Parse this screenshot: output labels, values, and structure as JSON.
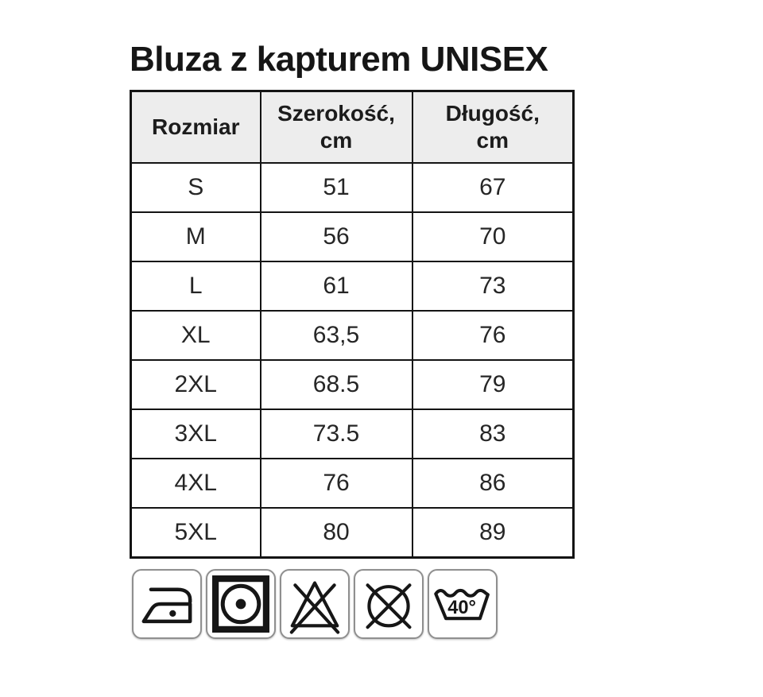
{
  "page": {
    "title": "Bluza z kapturem UNISEX"
  },
  "size_table": {
    "columns": [
      {
        "label": "Rozmiar"
      },
      {
        "label": "Szerokość,\ncm"
      },
      {
        "label": "Długość,\ncm"
      }
    ],
    "rows": [
      {
        "size": "S",
        "width_cm": "51",
        "length_cm": "67"
      },
      {
        "size": "M",
        "width_cm": "56",
        "length_cm": "70"
      },
      {
        "size": "L",
        "width_cm": "61",
        "length_cm": "73"
      },
      {
        "size": "XL",
        "width_cm": "63,5",
        "length_cm": "76"
      },
      {
        "size": "2XL",
        "width_cm": "68.5",
        "length_cm": "79"
      },
      {
        "size": "3XL",
        "width_cm": "73.5",
        "length_cm": "83"
      },
      {
        "size": "4XL",
        "width_cm": "76",
        "length_cm": "86"
      },
      {
        "size": "5XL",
        "width_cm": "80",
        "length_cm": "89"
      }
    ]
  },
  "care_symbols": {
    "items": [
      {
        "icon": "iron-one-dot-icon"
      },
      {
        "icon": "tumble-dry-one-dot-icon"
      },
      {
        "icon": "do-not-bleach-icon"
      },
      {
        "icon": "do-not-dry-clean-icon"
      },
      {
        "icon": "wash-40-icon",
        "label": "40°"
      }
    ]
  },
  "colors": {
    "background": "#ffffff",
    "table_border": "#141414",
    "header_background": "#ededed",
    "text": "#262626",
    "icon_box_border": "#8f8f8f",
    "icon_glyph": "#161616"
  }
}
